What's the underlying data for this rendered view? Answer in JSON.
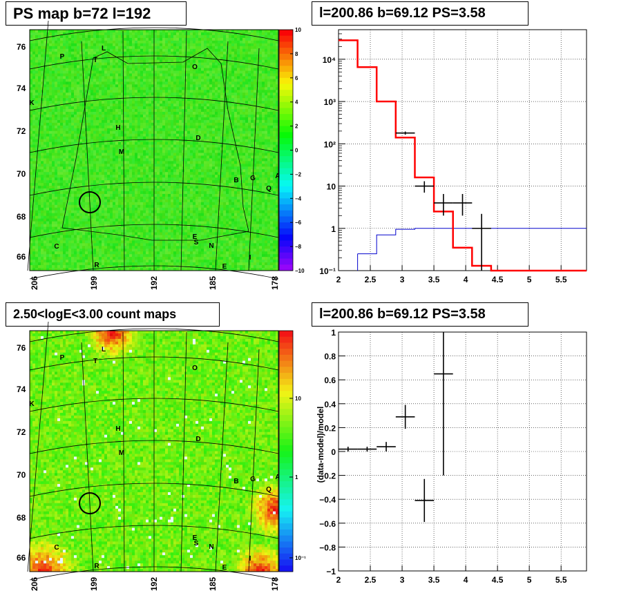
{
  "panels": {
    "tl_title": "PS map b=72 l=192",
    "tr_title": "l=200.86 b=69.12 PS=3.58",
    "bl_title": "2.50<logE<3.00 count maps",
    "br_title": "l=200.86 b=69.12 PS=3.58"
  },
  "colors": {
    "model": "#ff0000",
    "background": "#0000cc",
    "data": "#000000",
    "map": "#33ee33"
  },
  "maps": {
    "lat_ticks": [
      "76",
      "74",
      "72",
      "70",
      "68",
      "66"
    ],
    "lon_ticks": [
      "206",
      "199",
      "192",
      "185",
      "178"
    ],
    "ps_colorbar_ticks": [
      "10",
      "8",
      "6",
      "4",
      "2",
      "0",
      "−2",
      "−4",
      "−6",
      "−8",
      "−10"
    ],
    "count_colorbar_ticks": [
      "10",
      "1",
      "10⁻¹"
    ],
    "source_markers": [
      "P",
      "L",
      "T",
      "O",
      "K",
      "H",
      "D",
      "M",
      "B",
      "G",
      "A",
      "Q",
      "C",
      "E",
      "S",
      "N",
      "I",
      "E",
      "R"
    ]
  },
  "chart_data": [
    {
      "type": "line",
      "panel": "top-right",
      "yscale": "log",
      "xlim": [
        2,
        5.9
      ],
      "ylim": [
        0.1,
        50000
      ],
      "xticks": [
        "2",
        "2.5",
        "3",
        "3.5",
        "4",
        "4.5",
        "5",
        "5.5"
      ],
      "yticks": [
        "10⁻¹",
        "1",
        "10",
        "10²",
        "10³",
        "10⁴"
      ],
      "grid": true,
      "model_step": {
        "edges": [
          2.0,
          2.3,
          2.6,
          2.9,
          3.2,
          3.5,
          3.8,
          4.1,
          4.4,
          5.9
        ],
        "values": [
          28000,
          6500,
          1000,
          140,
          16,
          2.5,
          0.35,
          0.13,
          0.1
        ]
      },
      "background_step": {
        "edges": [
          2.3,
          2.6,
          2.9,
          3.2,
          5.9
        ],
        "values": [
          0.25,
          0.7,
          0.95,
          1.0
        ]
      },
      "data_points": [
        {
          "x": 3.05,
          "y": 180,
          "xerr": 0.15,
          "ylo": 165,
          "yhi": 195
        },
        {
          "x": 3.35,
          "y": 10,
          "xerr": 0.15,
          "ylo": 7,
          "yhi": 13
        },
        {
          "x": 3.65,
          "y": 4,
          "xerr": 0.15,
          "ylo": 2,
          "yhi": 6.5
        },
        {
          "x": 3.95,
          "y": 4,
          "xerr": 0.15,
          "ylo": 2,
          "yhi": 6.5
        },
        {
          "x": 4.25,
          "y": 1,
          "xerr": 0.15,
          "ylo": 0.1,
          "yhi": 2.2
        }
      ]
    },
    {
      "type": "scatter",
      "panel": "bottom-right",
      "ylabel": "(data-model)/model",
      "xlim": [
        2,
        5.9
      ],
      "ylim": [
        -1,
        1
      ],
      "xticks": [
        "2",
        "2.5",
        "3",
        "3.5",
        "4",
        "4.5",
        "5",
        "5.5"
      ],
      "yticks": [
        "−1",
        "−0.8",
        "−0.6",
        "−0.4",
        "−0.2",
        "0",
        "0.2",
        "0.4",
        "0.6",
        "0.8",
        "1"
      ],
      "grid": true,
      "data_points": [
        {
          "x": 2.15,
          "y": 0.02,
          "xerr": 0.15,
          "yerr": 0.02
        },
        {
          "x": 2.45,
          "y": 0.02,
          "xerr": 0.15,
          "yerr": 0.02
        },
        {
          "x": 2.75,
          "y": 0.04,
          "xerr": 0.15,
          "yerr": 0.04
        },
        {
          "x": 3.05,
          "y": 0.29,
          "xerr": 0.15,
          "yerr": 0.1
        },
        {
          "x": 3.35,
          "y": -0.41,
          "xerr": 0.15,
          "yerr": 0.18
        },
        {
          "x": 3.65,
          "y": 0.65,
          "xerr": 0.15,
          "yerr": 0.85
        }
      ]
    }
  ]
}
